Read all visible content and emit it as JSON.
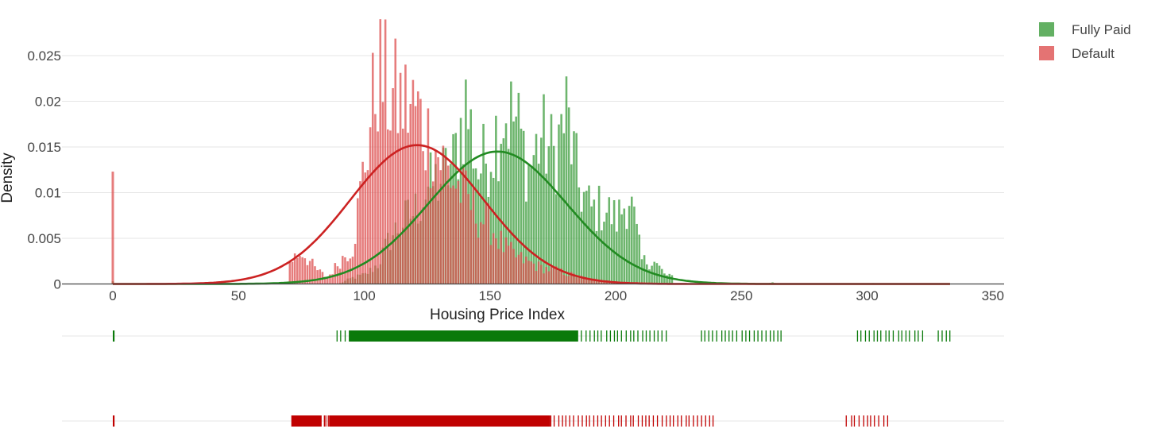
{
  "chart_data": {
    "type": "histogram",
    "title": "",
    "xlabel": "Housing  Price Index",
    "ylabel": "Density",
    "xlim": [
      -20,
      353
    ],
    "ylim": [
      0,
      0.0285
    ],
    "x_ticks": [
      0,
      50,
      100,
      150,
      200,
      250,
      300,
      350
    ],
    "x_tick_labels": [
      "0",
      "50",
      "100",
      "150",
      "200",
      "250",
      "300",
      "350"
    ],
    "y_ticks": [
      0,
      0.005,
      0.01,
      0.015,
      0.02,
      0.025
    ],
    "y_tick_labels": [
      "0",
      "0.005",
      "0.01",
      "0.015",
      "0.02",
      "0.025"
    ],
    "grid": true,
    "legend_position": "top-right",
    "series": [
      {
        "name": "Fully Paid",
        "color": "#228b22",
        "bar_color": "#3c9c3c",
        "histogram_bars": [
          {
            "x": 0,
            "y": 0.0003
          },
          {
            "x": 90,
            "y": 0.0001
          },
          {
            "x": 95,
            "y": 0.0008
          },
          {
            "x": 100,
            "y": 0.0012
          },
          {
            "x": 105,
            "y": 0.0025
          },
          {
            "x": 110,
            "y": 0.006
          },
          {
            "x": 115,
            "y": 0.008
          },
          {
            "x": 120,
            "y": 0.0095
          },
          {
            "x": 125,
            "y": 0.0125
          },
          {
            "x": 130,
            "y": 0.0135
          },
          {
            "x": 135,
            "y": 0.0155
          },
          {
            "x": 140,
            "y": 0.0232
          },
          {
            "x": 145,
            "y": 0.0145
          },
          {
            "x": 150,
            "y": 0.0175
          },
          {
            "x": 155,
            "y": 0.0222
          },
          {
            "x": 160,
            "y": 0.021
          },
          {
            "x": 165,
            "y": 0.0148
          },
          {
            "x": 170,
            "y": 0.019
          },
          {
            "x": 175,
            "y": 0.0165
          },
          {
            "x": 180,
            "y": 0.022
          },
          {
            "x": 185,
            "y": 0.0125
          },
          {
            "x": 190,
            "y": 0.0095
          },
          {
            "x": 195,
            "y": 0.0098
          },
          {
            "x": 200,
            "y": 0.0083
          },
          {
            "x": 205,
            "y": 0.0115
          },
          {
            "x": 210,
            "y": 0.003
          },
          {
            "x": 215,
            "y": 0.0028
          },
          {
            "x": 220,
            "y": 0.001
          },
          {
            "x": 260,
            "y": 0.0002
          },
          {
            "x": 300,
            "y": 0.0001
          }
        ],
        "density_curve": {
          "mean": 153,
          "sd": 27.5,
          "peak": 0.0145
        },
        "rug": [
          {
            "from": 0,
            "to": 0.5
          },
          {
            "from": 89,
            "to": 94,
            "sparse": true
          },
          {
            "from": 94,
            "to": 185
          },
          {
            "from": 185,
            "to": 220,
            "sparse": true
          },
          {
            "from": 234,
            "to": 266,
            "sparse": true
          },
          {
            "from": 296,
            "to": 322,
            "sparse": true
          },
          {
            "from": 328,
            "to": 333,
            "sparse": true
          }
        ]
      },
      {
        "name": "Default",
        "color": "#cc2222",
        "bar_color": "#dd5050",
        "histogram_bars": [
          {
            "x": 0,
            "y": 0.0123
          },
          {
            "x": 70,
            "y": 0.003
          },
          {
            "x": 75,
            "y": 0.0042
          },
          {
            "x": 80,
            "y": 0.002
          },
          {
            "x": 85,
            "y": 0.0008
          },
          {
            "x": 90,
            "y": 0.003
          },
          {
            "x": 95,
            "y": 0.0048
          },
          {
            "x": 100,
            "y": 0.016
          },
          {
            "x": 105,
            "y": 0.0275
          },
          {
            "x": 110,
            "y": 0.024
          },
          {
            "x": 115,
            "y": 0.0232
          },
          {
            "x": 120,
            "y": 0.0225
          },
          {
            "x": 125,
            "y": 0.019
          },
          {
            "x": 130,
            "y": 0.0162
          },
          {
            "x": 135,
            "y": 0.0133
          },
          {
            "x": 140,
            "y": 0.0112
          },
          {
            "x": 145,
            "y": 0.0088
          },
          {
            "x": 150,
            "y": 0.0075
          },
          {
            "x": 155,
            "y": 0.0048
          },
          {
            "x": 160,
            "y": 0.0035
          },
          {
            "x": 165,
            "y": 0.0028
          },
          {
            "x": 170,
            "y": 0.0021
          },
          {
            "x": 175,
            "y": 0.0018
          },
          {
            "x": 180,
            "y": 0.0014
          },
          {
            "x": 185,
            "y": 0.0009
          },
          {
            "x": 190,
            "y": 0.0006
          },
          {
            "x": 195,
            "y": 0.0004
          },
          {
            "x": 200,
            "y": 0.0003
          },
          {
            "x": 205,
            "y": 0.0002
          },
          {
            "x": 210,
            "y": 0.0002
          }
        ],
        "density_curve": {
          "mean": 121,
          "sd": 26.5,
          "peak": 0.0152
        },
        "rug": [
          {
            "from": 0,
            "to": 0.5
          },
          {
            "from": 71,
            "to": 83
          },
          {
            "from": 83,
            "to": 86,
            "sparse": true
          },
          {
            "from": 86,
            "to": 174
          },
          {
            "from": 174,
            "to": 239,
            "sparse": true
          },
          {
            "from": 292,
            "to": 308,
            "sparse": true
          }
        ]
      }
    ]
  }
}
